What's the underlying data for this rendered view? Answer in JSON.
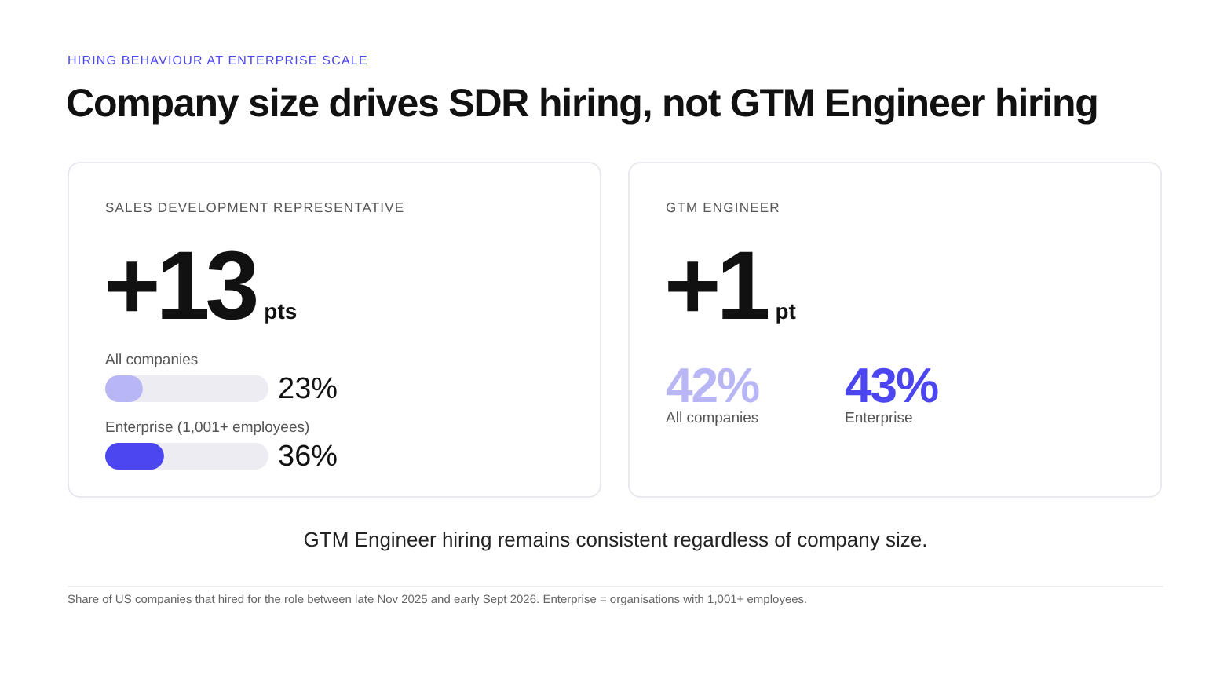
{
  "chart_data": [
    {
      "type": "other",
      "title": "Company size drives SDR hiring, not GTM Engineer hiring",
      "subtitle": "HIRING BEHAVIOUR AT ENTERPRISE SCALE",
      "annotations": [
        "GTM Engineer hiring remains consistent regardless of company size.",
        "Share of US companies that hired for the role between late Nov 2025 and early Sept 2026. Enterprise = organisations with 1,001+ employees."
      ]
    },
    {
      "type": "bar",
      "orientation": "horizontal",
      "title": "SALES DEVELOPMENT REPRESENTATIVE",
      "annotations": [
        "+13",
        "pts"
      ],
      "categories": [
        "All companies",
        "Enterprise (1,001+ employees)"
      ],
      "values": [
        23,
        36
      ],
      "colors": [
        "#b9b6f6",
        "#4b46ef"
      ],
      "value_labels": [
        "23%",
        "36%"
      ],
      "xlim": [
        0,
        100
      ],
      "tick_labels": false
    },
    {
      "type": "other",
      "title": "GTM ENGINEER",
      "annotations": [
        "+1",
        "pt"
      ],
      "categories": [
        "All companies",
        "Enterprise"
      ],
      "colors": [
        "#b9b6f6",
        "#4b46ef"
      ],
      "value_labels": [
        "42%",
        "43%"
      ]
    }
  ]
}
